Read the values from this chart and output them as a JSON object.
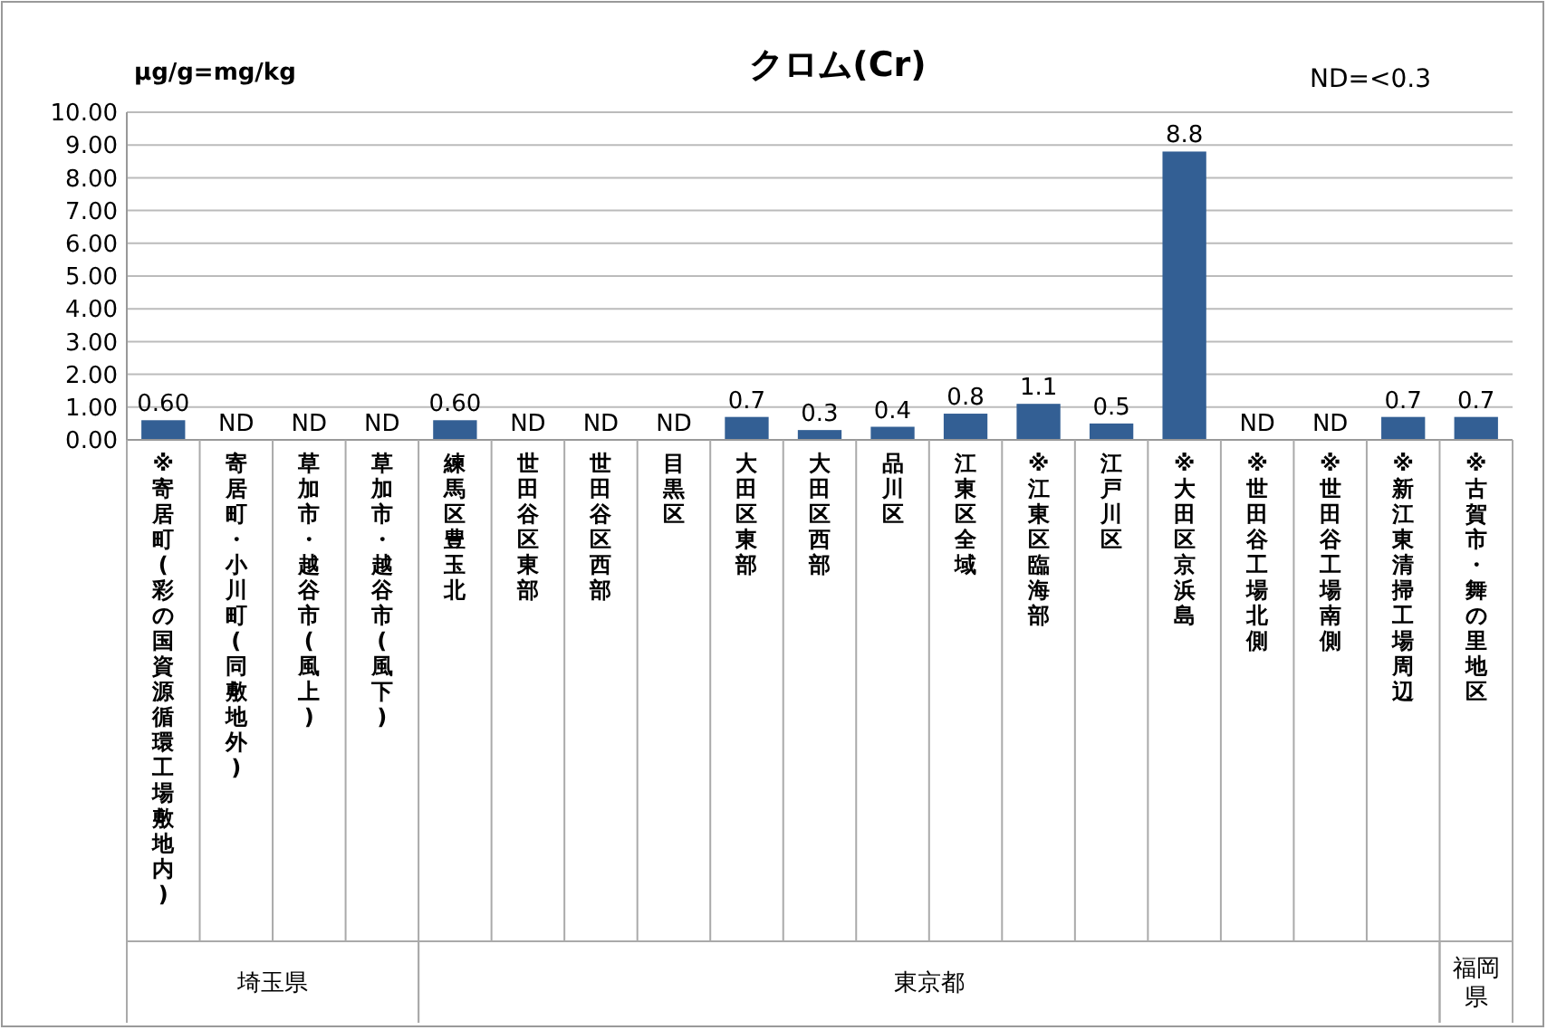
{
  "chart_data": {
    "type": "bar",
    "title": "クロム(Cr)",
    "ylabel": "µg/g=mg/kg",
    "annotations": [
      "ND=<0.3",
      "埼玉県",
      "東京都",
      "福岡県"
    ],
    "categories": [
      "※寄居町(彩の国資源循環工場敷地内)",
      "寄居町・小川町(同敷地外)",
      "草加市・越谷市(風上)",
      "草加市・越谷市(風下)",
      "練馬区豊玉北",
      "世田谷区東部",
      "世田谷区西部",
      "目黒区",
      "大田区東部",
      "大田区西部",
      "品川区",
      "江東区全域",
      "※江東区臨海部",
      "江戸川区",
      "※大田区京浜島",
      "※世田谷工場北側",
      "※世田谷工場南側",
      "※新江東清掃工場周辺",
      "※古賀市・舞の里地区"
    ],
    "values": [
      0.6,
      null,
      null,
      null,
      0.6,
      null,
      null,
      null,
      0.7,
      0.3,
      0.4,
      0.8,
      1.1,
      0.5,
      8.8,
      null,
      null,
      0.7,
      0.7
    ],
    "value_labels": [
      "0.60",
      "ND",
      "ND",
      "ND",
      "0.60",
      "ND",
      "ND",
      "ND",
      "0.7",
      "0.3",
      "0.4",
      "0.8",
      "1.1",
      "0.5",
      "8.8",
      "ND",
      "ND",
      "0.7",
      "0.7"
    ],
    "color": "#335f94",
    "ylim": [
      0,
      10
    ],
    "yticks": [
      {
        "value": 0,
        "label": "0.00"
      },
      {
        "value": 1,
        "label": "1.00"
      },
      {
        "value": 2,
        "label": "2.00"
      },
      {
        "value": 3,
        "label": "3.00"
      },
      {
        "value": 4,
        "label": "4.00"
      },
      {
        "value": 5,
        "label": "5.00"
      },
      {
        "value": 6,
        "label": "6.00"
      },
      {
        "value": 7,
        "label": "7.00"
      },
      {
        "value": 8,
        "label": "8.00"
      },
      {
        "value": 9,
        "label": "9.00"
      },
      {
        "value": 10,
        "label": "10.00"
      }
    ],
    "grid": "y"
  }
}
